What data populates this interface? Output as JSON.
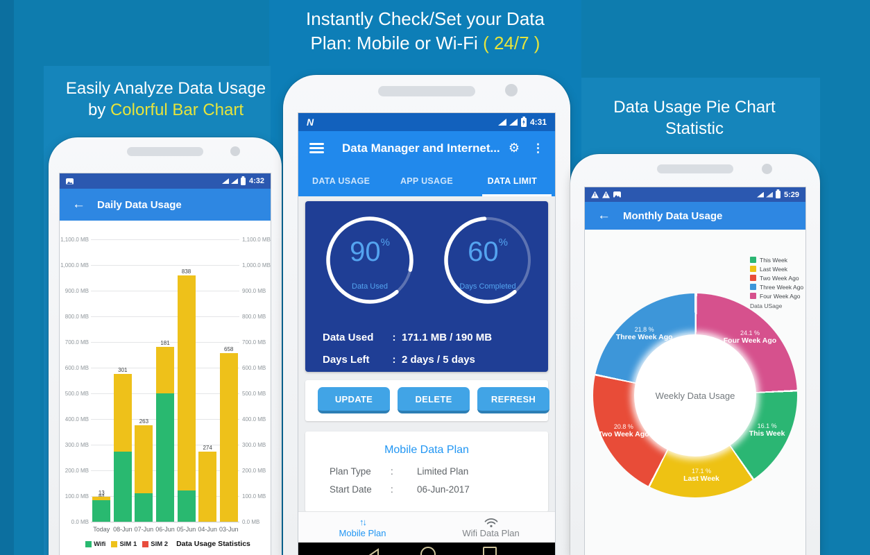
{
  "banner": {
    "line1": "Instantly Check/Set your Data",
    "line2": "Plan: Mobile or Wi-Fi",
    "line2_highlight": "( 24/7 )"
  },
  "left_header": {
    "line1": "Easily Analyze Data Usage",
    "line2_prefix": "by",
    "line2_highlight": "Colorful Bar Chart"
  },
  "right_header": {
    "line1": "Data Usage Pie Chart",
    "line2": "Statistic"
  },
  "left_phone": {
    "status_time": "4:32",
    "back_glyph": "←",
    "appbar_title": "Daily Data Usage"
  },
  "middle_phone": {
    "status_logo": "N",
    "status_time": "4:31",
    "appbar_title": "Data Manager and Internet...",
    "gear_glyph": "⚙",
    "menu_glyph": "⋮",
    "tabs": [
      {
        "label": "DATA USAGE",
        "active": false
      },
      {
        "label": "APP USAGE",
        "active": false
      },
      {
        "label": "DATA LIMIT",
        "active": true
      }
    ],
    "gauges": [
      {
        "value": "90",
        "unit": "%",
        "label": "Data Used"
      },
      {
        "value": "60",
        "unit": "%",
        "label": "Days Completed"
      }
    ],
    "stats": [
      {
        "label": "Data Used",
        "sep": ":",
        "value": "171.1 MB / 190 MB"
      },
      {
        "label": "Days Left",
        "sep": ":",
        "value": "2 days / 5 days"
      }
    ],
    "buttons": [
      "UPDATE",
      "DELETE",
      "REFRESH"
    ],
    "plan_card": {
      "title": "Mobile Data Plan",
      "rows": [
        {
          "label": "Plan Type",
          "sep": ":",
          "value": "Limited Plan"
        },
        {
          "label": "Start Date",
          "sep": ":",
          "value": "06-Jun-2017"
        }
      ]
    },
    "bottom_nav": [
      {
        "label": "Mobile Plan",
        "icon": "updown-arrows",
        "active": true
      },
      {
        "label": "Wifi Data Plan",
        "icon": "wifi",
        "active": false
      }
    ]
  },
  "right_phone": {
    "status_time": "5:29",
    "back_glyph": "←",
    "appbar_title": "Monthly Data Usage"
  },
  "chart_data": [
    {
      "type": "bar",
      "stacked": true,
      "title": "Data Usage Statistics",
      "categories": [
        "Today",
        "08-Jun",
        "07-Jun",
        "06-Jun",
        "05-Jun",
        "04-Jun",
        "03-Jun"
      ],
      "series": [
        {
          "name": "Wifi",
          "color": "#29b970",
          "values": [
            84,
            274,
            112,
            501,
            122,
            0,
            0
          ]
        },
        {
          "name": "SIM 1",
          "color": "#eec11a",
          "values": [
            13,
            301,
            263,
            181,
            838,
            274,
            658
          ]
        },
        {
          "name": "SIM 2",
          "color": "#e84c3d",
          "values": [
            0,
            0,
            0,
            0,
            0,
            0,
            0
          ]
        }
      ],
      "ylim": [
        0,
        1100
      ],
      "ytick_step": 100,
      "yticks": [
        "0.0 MB",
        "100.0 MB",
        "200.0 MB",
        "300.0 MB",
        "400.0 MB",
        "500.0 MB",
        "600.0 MB",
        "700.0 MB",
        "800.0 MB",
        "900.0 MB",
        "1,000.0 MB",
        "1,100.0 MB"
      ],
      "grid": true,
      "legend_position": "bottom",
      "ylabel_unit": "MB"
    },
    {
      "type": "pie",
      "donut": true,
      "center_label": "Weekly Data Usage",
      "legend_title": "Data USage",
      "legend_position": "top-right",
      "slices": [
        {
          "label": "Four Week Ago",
          "pct": 24.1,
          "color": "#d6518d"
        },
        {
          "label": "This Week",
          "pct": 16.1,
          "color": "#2bb673"
        },
        {
          "label": "Last Week",
          "pct": 17.1,
          "color": "#eec213"
        },
        {
          "label": "Two Week Ago",
          "pct": 20.8,
          "color": "#e84c38"
        },
        {
          "label": "Three Week Ago",
          "pct": 21.8,
          "color": "#3d96d9"
        }
      ],
      "legend_order": [
        "This Week",
        "Last Week",
        "Two Week Ago",
        "Three Week Ago",
        "Four Week Ago"
      ]
    }
  ],
  "colors": {
    "bg": "#0e7cae",
    "bg_panel": "#1585bb",
    "bg_center": "#0d7eb7",
    "highlight_yellow": "#e7e43b",
    "statusbar_blue": "#2b58b0",
    "appbar_blue": "#2e87e2",
    "mid_statusbar": "#1261bd",
    "mid_appbar": "#2189ec",
    "card_navy": "#1f3e95",
    "gauge_blue": "#54a4f0",
    "accent_blue": "#2196f3",
    "button_blue": "#41a4e6"
  }
}
